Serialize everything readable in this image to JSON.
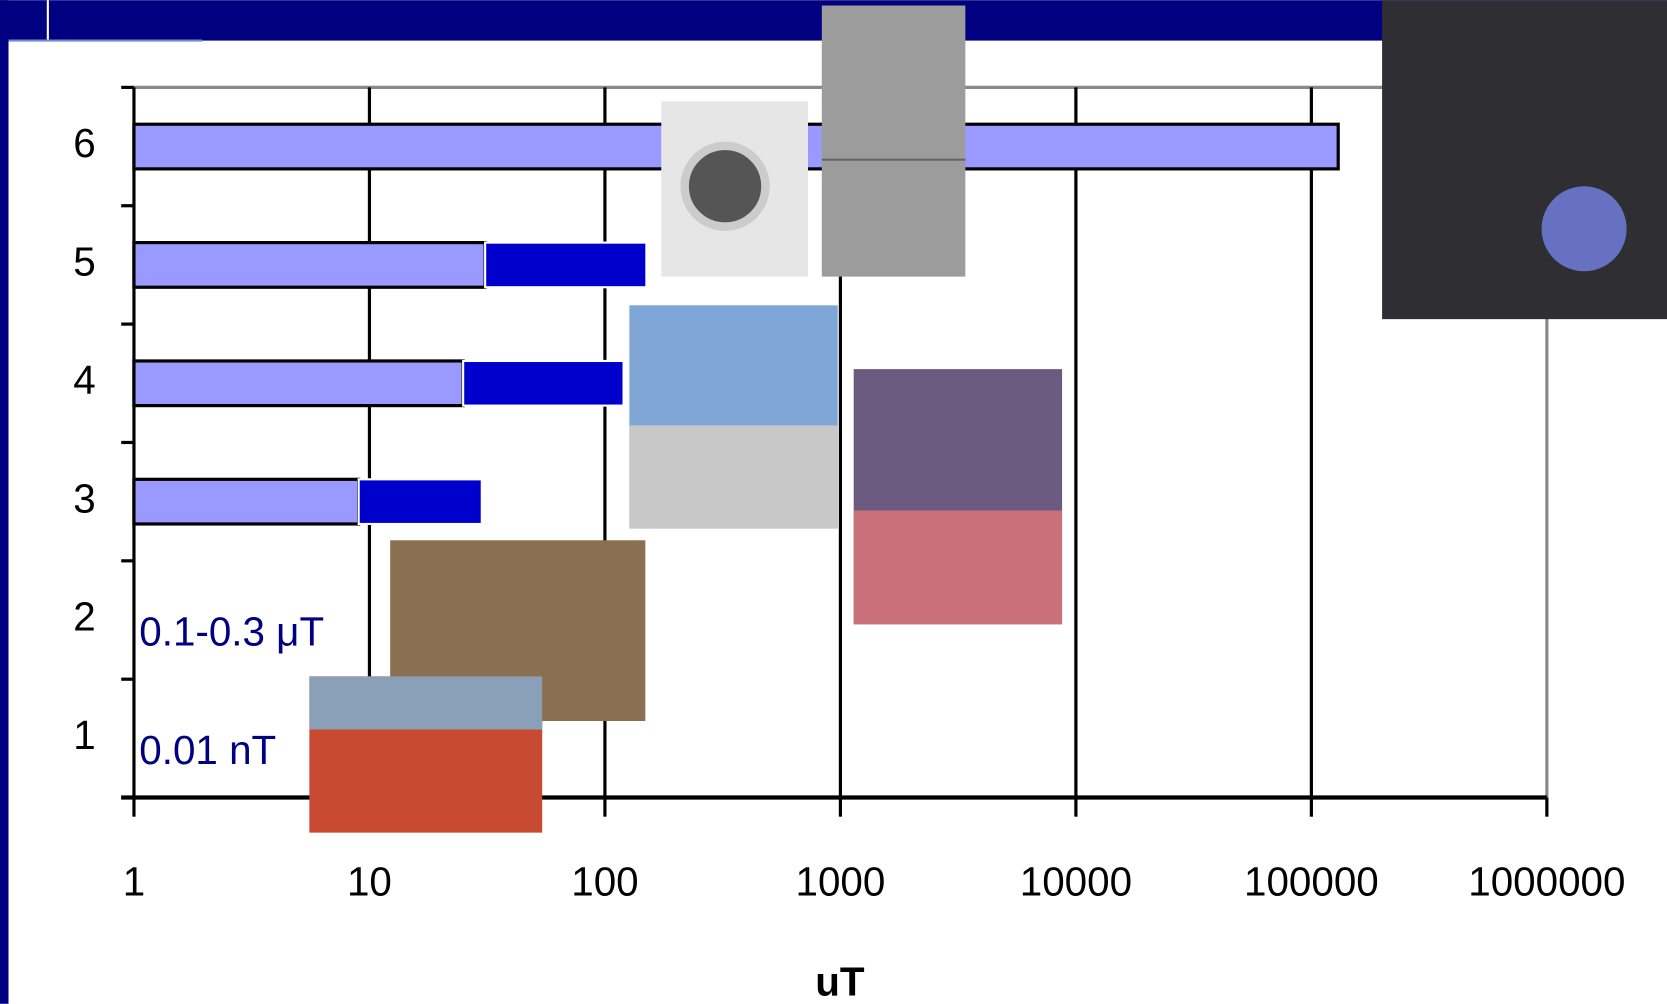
{
  "chart_data": {
    "type": "range-bar",
    "categories": [
      "1",
      "2",
      "3",
      "4",
      "5",
      "6"
    ],
    "values": [
      null,
      null,
      9,
      25,
      31,
      130000
    ],
    "high": [
      null,
      null,
      30,
      120,
      150,
      null
    ],
    "color": "#9999ff",
    "high_color": "#0000cc",
    "xlabel": "uT",
    "xlim": [
      1,
      1000000
    ],
    "xticks": [
      1,
      10,
      100,
      1000,
      10000,
      100000,
      1000000
    ],
    "log_x": true,
    "grid": true,
    "annotations": [
      "0.01 nT",
      "0.1-0.3 μT"
    ]
  }
}
